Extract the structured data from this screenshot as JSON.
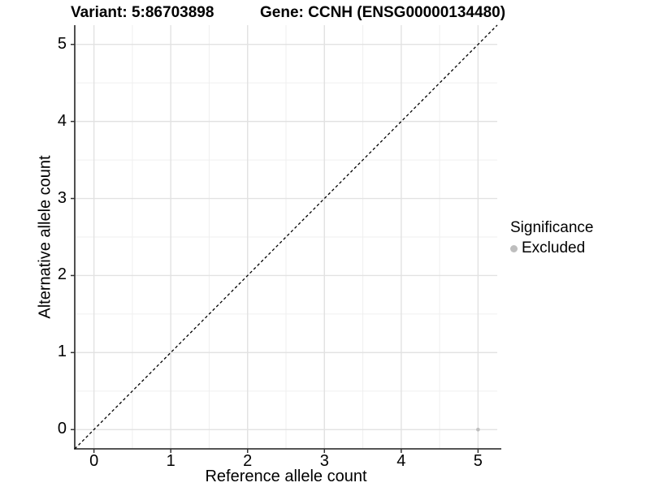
{
  "chart_data": {
    "type": "scatter",
    "title_left": "Variant: 5:86703898",
    "title_right": "Gene: CCNH (ENSG00000134480)",
    "xlabel": "Reference allele count",
    "ylabel": "Alternative allele count",
    "xlim": [
      -0.25,
      5.25
    ],
    "ylim": [
      -0.25,
      5.25
    ],
    "xticks": [
      0,
      1,
      2,
      3,
      4,
      5
    ],
    "yticks": [
      0,
      1,
      2,
      3,
      4,
      5
    ],
    "xticks_minor": [
      0.5,
      1.5,
      2.5,
      3.5,
      4.5
    ],
    "yticks_minor": [
      0.5,
      1.5,
      2.5,
      3.5,
      4.5
    ],
    "grid": "major+minor",
    "reference_line": {
      "kind": "identity",
      "slope": 1,
      "intercept": 0,
      "linestyle": "dashed",
      "color": "#000000"
    },
    "series": [
      {
        "name": "Excluded",
        "color": "#bebebe",
        "points": [
          {
            "x": 5,
            "y": 0
          }
        ]
      }
    ],
    "legend": {
      "title": "Significance",
      "position": "right",
      "items": [
        {
          "label": "Excluded",
          "color": "#bebebe"
        }
      ]
    }
  },
  "colors": {
    "background": "#ffffff",
    "grid_major": "#e2e2e2",
    "grid_minor": "#efefef",
    "axis_line": "#3d3d3d",
    "tick_mark": "#333333",
    "text": "#000000"
  }
}
